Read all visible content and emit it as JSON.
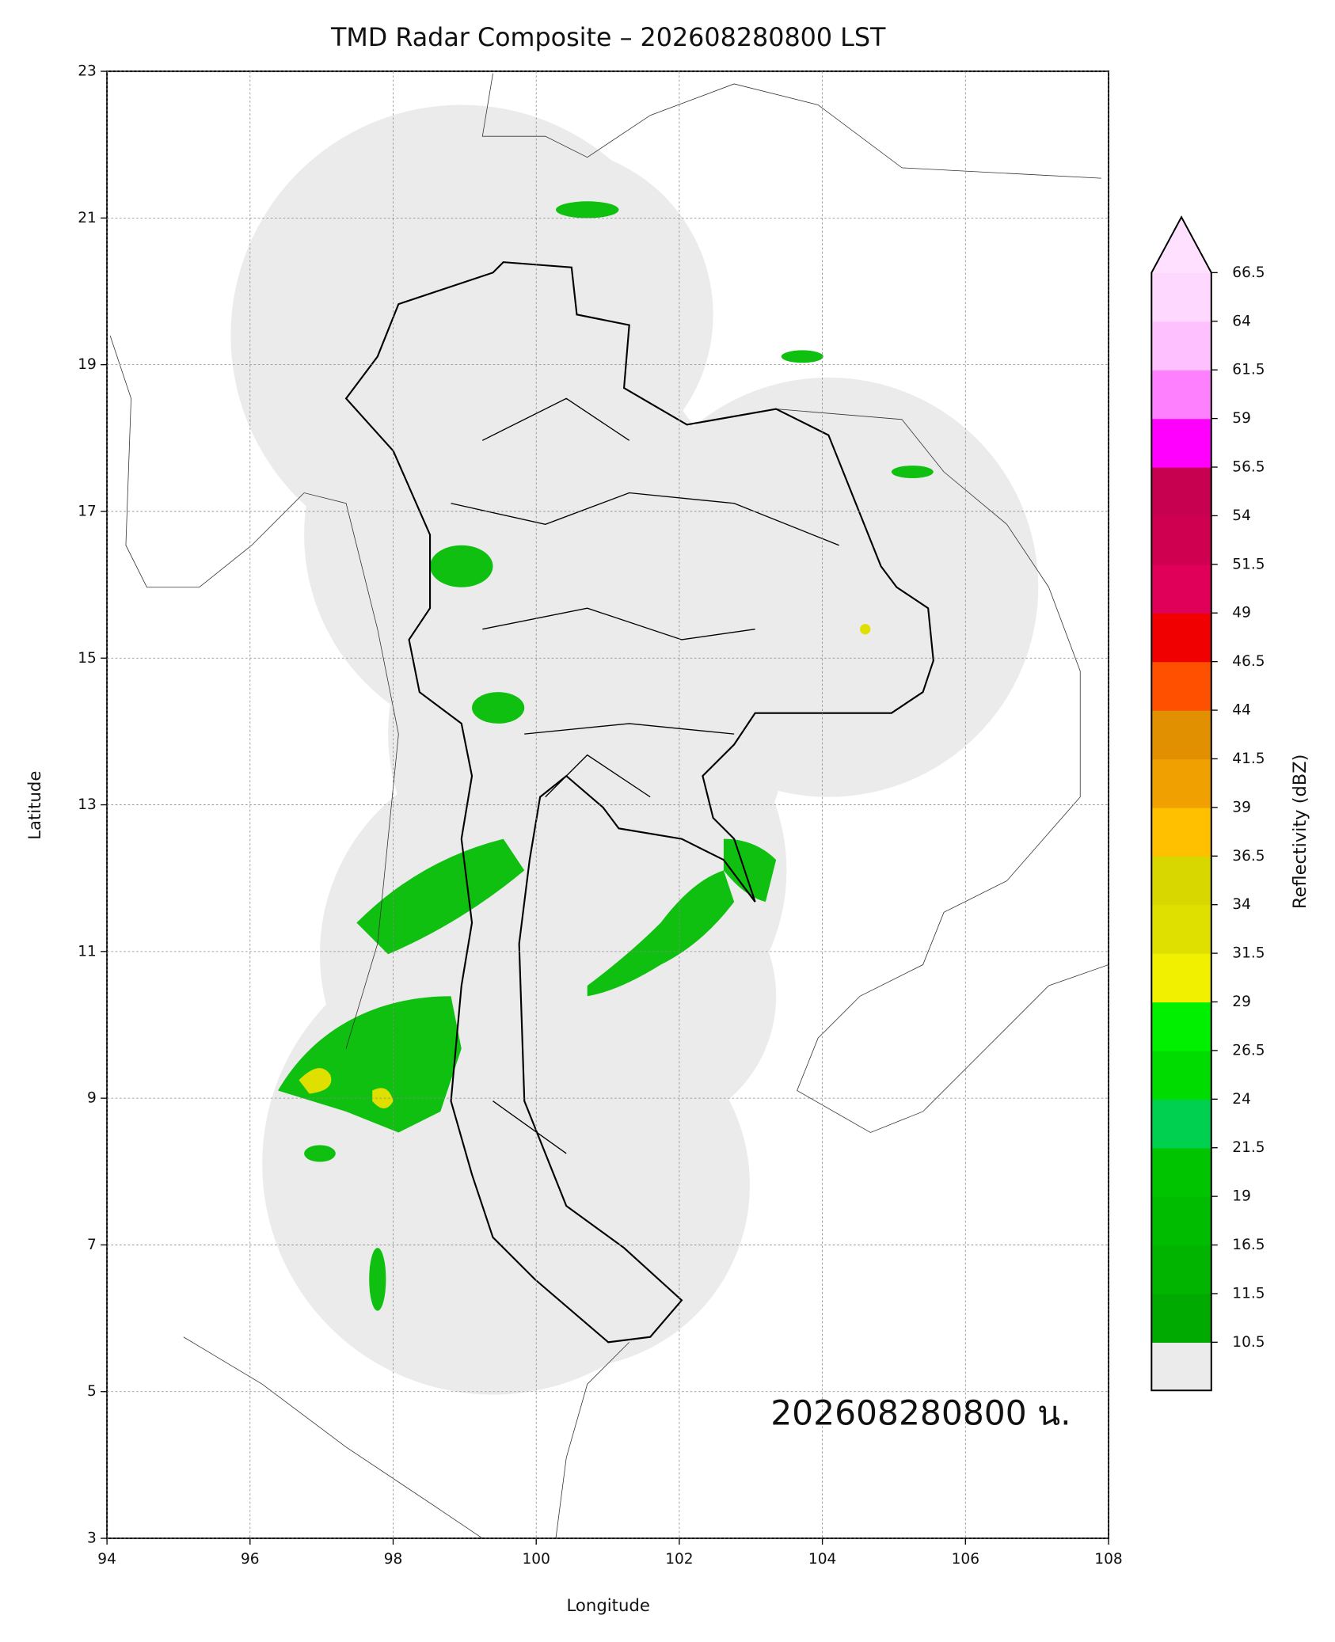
{
  "chart_data": {
    "type": "map",
    "title": "TMD Radar Composite – 202608280800 LST",
    "x_label": "Longitude",
    "y_label": "Latitude",
    "annotation": "202608280800 น.",
    "xlim": [
      94,
      108
    ],
    "xticks": [
      94,
      96,
      98,
      100,
      102,
      104,
      106,
      108
    ],
    "ylim": [
      3,
      23
    ],
    "yticks": [
      3,
      5,
      7,
      9,
      11,
      13,
      15,
      17,
      19,
      21,
      23
    ],
    "grid": true,
    "colorbar": {
      "label": "Reflectivity (dBZ)",
      "ticks": [
        10.5,
        11.5,
        16.5,
        19.0,
        21.5,
        24.0,
        26.5,
        29.0,
        31.5,
        34.0,
        36.5,
        39.0,
        41.5,
        44.0,
        46.5,
        49.0,
        51.5,
        54.0,
        56.5,
        59.0,
        61.5,
        64.0,
        66.5
      ],
      "colors": [
        "#00aa00",
        "#00b400",
        "#00bc00",
        "#00c400",
        "#00d050",
        "#00dc00",
        "#00f000",
        "#f0f000",
        "#e0e000",
        "#d8d800",
        "#ffc000",
        "#f0a000",
        "#e09000",
        "#ff5000",
        "#f00000",
        "#e0005a",
        "#d00050",
        "#c80050",
        "#ff00ff",
        "#ff80ff",
        "#ffc0ff",
        "#ffd8ff"
      ],
      "under_color": "#ebebeb",
      "over_color": "#ffe0ff"
    }
  }
}
